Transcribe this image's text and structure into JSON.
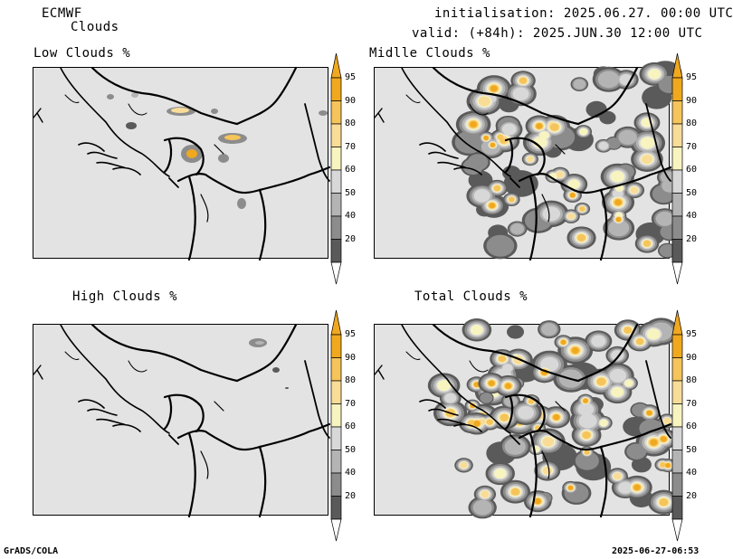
{
  "header": {
    "model": "ECMWF",
    "product": "Clouds",
    "initialisation": "initialisation: 2025.06.27. 00:00 UTC",
    "valid": "valid: (+84h): 2025.JUN.30 12:00 UTC"
  },
  "panels": [
    {
      "title": "Low Clouds %"
    },
    {
      "title": "Midlle Clouds %"
    },
    {
      "title": "High Clouds %"
    },
    {
      "title": "Total Clouds %"
    }
  ],
  "colorbar": {
    "levels": [
      "95",
      "90",
      "80",
      "70",
      "60",
      "50",
      "40",
      "20"
    ],
    "colors": [
      "#f0a81e",
      "#f5c45a",
      "#f8dc98",
      "#f8f4c0",
      "#d8d8d8",
      "#b4b4b4",
      "#8c8c8c",
      "#5a5a5a",
      "#3c3c3c"
    ]
  },
  "footer": {
    "left": "GrADS/COLA",
    "right": "2025-06-27-06:53"
  }
}
